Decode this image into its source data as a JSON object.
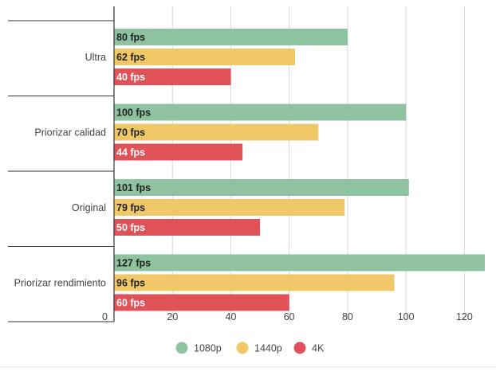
{
  "chart_data": {
    "type": "bar",
    "orientation": "horizontal",
    "categories": [
      "Ultra",
      "Priorizar calidad",
      "Original",
      "Priorizar rendimiento"
    ],
    "series": [
      {
        "name": "1080p",
        "color": "#8ec2a1",
        "label_color": "#222222",
        "values": [
          80,
          100,
          101,
          127
        ],
        "labels": [
          "80 fps",
          "100 fps",
          "101 fps",
          "127 fps"
        ]
      },
      {
        "name": "1440p",
        "color": "#f0c868",
        "label_color": "#222222",
        "values": [
          62,
          70,
          79,
          96
        ],
        "labels": [
          "62 fps",
          "70 fps",
          "79 fps",
          "96 fps"
        ]
      },
      {
        "name": "4K",
        "color": "#df5258",
        "label_color": "#ffffff",
        "values": [
          40,
          44,
          50,
          60
        ],
        "labels": [
          "40 fps",
          "44 fps",
          "50 fps",
          "60 fps"
        ]
      }
    ],
    "xticks": [
      0,
      20,
      40,
      60,
      80,
      100,
      120
    ],
    "xlim": [
      0,
      127
    ],
    "grid": true,
    "legend_position": "bottom"
  }
}
